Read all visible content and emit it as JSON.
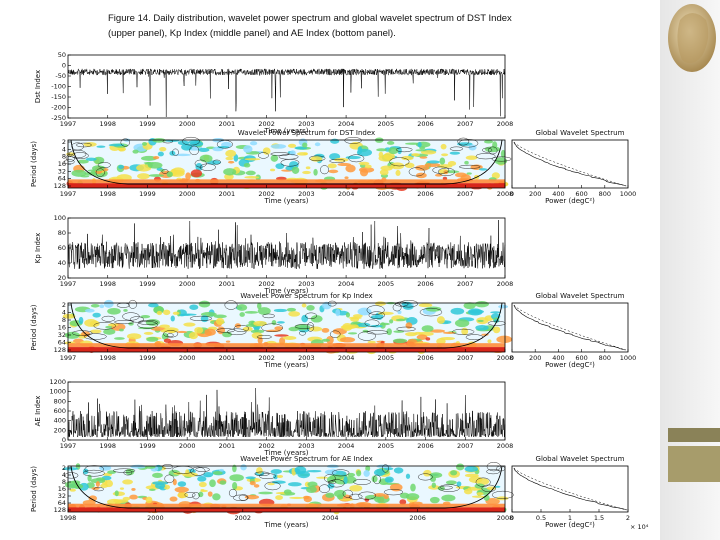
{
  "caption": [
    "Figure 14. Daily distribution, wavelet power spectrum and global wavelet spectrum of DST Index",
    "(upper panel), Kp Index (middle panel) and AE Index (bottom panel)."
  ],
  "panels": [
    {
      "series": {
        "y_label": "Dst Index",
        "y_ticks": [
          "50",
          "0",
          "-50",
          "-100",
          "-150",
          "-200",
          "-250"
        ],
        "x_ticks": [
          "1997",
          "1998",
          "1999",
          "2000",
          "2001",
          "2002",
          "2003",
          "2004",
          "2005",
          "2006",
          "2007",
          "2008"
        ],
        "x_label": "Time (years)"
      },
      "wavelet": {
        "title": "Wavelet Power Spectrum for DST Index",
        "y_label": "Period (days)",
        "y_ticks": [
          "2",
          "4",
          "8",
          "16",
          "32",
          "64",
          "128"
        ],
        "x_ticks": [
          "1997",
          "1998",
          "1999",
          "2000",
          "2001",
          "2002",
          "2003",
          "2004",
          "2005",
          "2006",
          "2007",
          "2008"
        ],
        "x_label": "Time (years)"
      },
      "global": {
        "title": "Global Wavelet Spectrum",
        "x_ticks": [
          "0",
          "200",
          "400",
          "600",
          "800",
          "1000"
        ],
        "x_label": "Power (degC²)"
      }
    },
    {
      "series": {
        "y_label": "Kp Index",
        "y_ticks": [
          "100",
          "80",
          "60",
          "40",
          "20"
        ],
        "x_ticks": [
          "1997",
          "1998",
          "1999",
          "2000",
          "2001",
          "2002",
          "2003",
          "2004",
          "2005",
          "2006",
          "2007",
          "2008"
        ],
        "x_label": "Time (years)"
      },
      "wavelet": {
        "title": "Wavelet Power Spectrum for Kp Index",
        "y_label": "Period (days)",
        "y_ticks": [
          "2",
          "4",
          "8",
          "16",
          "32",
          "64",
          "128"
        ],
        "x_ticks": [
          "1997",
          "1998",
          "1999",
          "2000",
          "2001",
          "2002",
          "2003",
          "2004",
          "2005",
          "2006",
          "2007",
          "2008"
        ],
        "x_label": "Time (years)"
      },
      "global": {
        "title": "Global Wavelet Spectrum",
        "x_ticks": [
          "0",
          "200",
          "400",
          "600",
          "800",
          "1000"
        ],
        "x_label": "Power (degC²)"
      }
    },
    {
      "series": {
        "y_label": "AE Index",
        "y_ticks": [
          "1200",
          "1000",
          "800",
          "600",
          "400",
          "200",
          "0"
        ],
        "x_ticks": [
          "1997",
          "1998",
          "1999",
          "2000",
          "2001",
          "2002",
          "2003",
          "2004",
          "2005",
          "2006",
          "2007",
          "2008"
        ],
        "x_label": "Time (years)"
      },
      "wavelet": {
        "title": "Wavelet Power Spectrum for AE Index",
        "y_label": "Period (days)",
        "y_ticks": [
          "2",
          "4",
          "8",
          "16",
          "32",
          "64",
          "128"
        ],
        "x_ticks": [
          "1998",
          "2000",
          "2002",
          "2004",
          "2006",
          "2008"
        ],
        "x_label": "Time (years)"
      },
      "global": {
        "title": "Global Wavelet Spectrum",
        "x_ticks": [
          "0",
          "0.5",
          "1",
          "1.5",
          "2"
        ],
        "x_label": "Power (degC²)",
        "x_multiplier": "× 10⁴"
      }
    }
  ]
}
